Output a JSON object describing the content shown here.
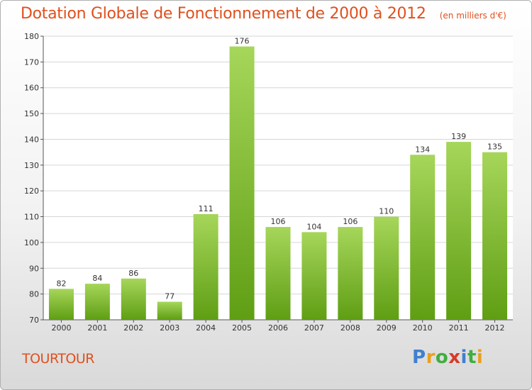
{
  "title": "Dotation Globale de Fonctionnement de 2000 à 2012",
  "subtitle": "(en milliers d'€)",
  "place": "TOURTOUR",
  "brand": {
    "letters": [
      "P",
      "r",
      "o",
      "x",
      "i",
      "t",
      "i"
    ],
    "colors": [
      "#3f7fd0",
      "#e8a020",
      "#3fae3f",
      "#d83a2a",
      "#3f7fd0",
      "#3fae3f",
      "#e8a020"
    ]
  },
  "colors": {
    "bar_top": "#a6d65a",
    "bar_bottom": "#5f9e14",
    "accent": "#e0501e"
  },
  "chart_data": {
    "type": "bar",
    "categories": [
      "2000",
      "2001",
      "2002",
      "2003",
      "2004",
      "2005",
      "2006",
      "2007",
      "2008",
      "2009",
      "2010",
      "2011",
      "2012"
    ],
    "values": [
      82,
      84,
      86,
      77,
      111,
      176,
      106,
      104,
      106,
      110,
      134,
      139,
      135
    ],
    "data_labels": [
      "82",
      "84",
      "86",
      "77",
      "111",
      "176",
      "106",
      "104",
      "106",
      "110",
      "134",
      "139",
      "135"
    ],
    "ylim": [
      70,
      180
    ],
    "yticks": [
      70,
      80,
      90,
      100,
      110,
      120,
      130,
      140,
      150,
      160,
      170,
      180
    ],
    "grid": true
  }
}
